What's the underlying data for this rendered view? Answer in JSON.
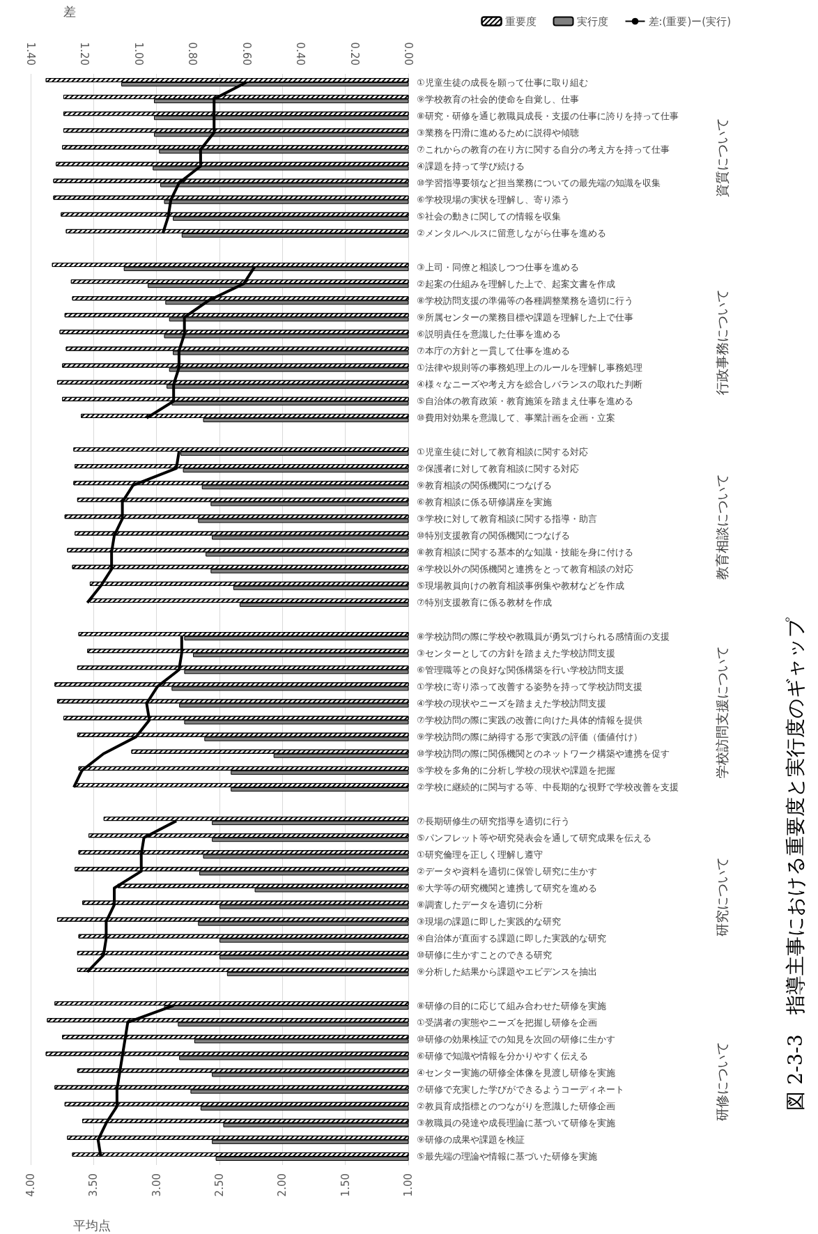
{
  "chart_data": {
    "type": "bar",
    "orientation": "horizontal",
    "title": "図 2-3-3　指導主事における重要度と実行度のギャップ",
    "xlabel": "平均点",
    "x2label": "差",
    "categories": [
      "①児童生徒の成長を願って仕事に取り組む",
      "⑨学校教育の社会的使命を自覚し、仕事",
      "⑧研究・研修を通じ教職員成長・支援の仕事に誇りを持って仕事",
      "③業務を円滑に進めるために説得や傾聴",
      "⑦これからの教育の在り方に関する自分の考え方を持って仕事",
      "④課題を持って学び続ける",
      "⑩学習指導要領など担当業務についての最先端の知識を収集",
      "⑥学校現場の実状を理解し、寄り添う",
      "⑤社会の動きに関しての情報を収集",
      "②メンタルヘルスに留意しながら仕事を進める",
      null,
      "③上司・同僚と相談しつつ仕事を進める",
      "②起案の仕組みを理解した上で、起案文書を作成",
      "⑧学校訪問支援の準備等の各種調整業務を適切に行う",
      "⑨所属センターの業務目標や課題を理解した上で仕事",
      "⑥説明責任を意識した仕事を進める",
      "⑦本庁の方針と一貫して仕事を進める",
      "①法律や規則等の事務処理上のルールを理解し事務処理",
      "④様々なニーズや考え方を総合しバランスの取れた判断",
      "⑤自治体の教育政策・教育施策を踏まえ仕事を進める",
      "⑩費用対効果を意識して、事業計画を企画・立案",
      null,
      "①児童生徒に対して教育相談に関する対応",
      "②保護者に対して教育相談に関する対応",
      "⑨教育相談の関係機関につなげる",
      "⑥教育相談に係る研修講座を実施",
      "③学校に対して教育相談に関する指導・助言",
      "⑩特別支援教育の関係機関につなげる",
      "⑧教育相談に関する基本的な知識・技能を身に付ける",
      "④学校以外の関係機関と連携をとって教育相談の対応",
      "⑤現場教員向けの教育相談事例集や教材などを作成",
      "⑦特別支援教育に係る教材を作成",
      null,
      "⑧学校訪問の際に学校や教職員が勇気づけられる感情面の支援",
      "③センターとしての方針を踏まえた学校訪問支援",
      "⑥管理職等との良好な関係構築を行い学校訪問支援",
      "①学校に寄り添って改善する姿勢を持って学校訪問支援",
      "④学校の現状やニーズを踏まえた学校訪問支援",
      "⑦学校訪問の際に実践の改善に向けた具体的情報を提供",
      "⑨学校訪問の際に納得する形で実践の評価（価値付け）",
      "⑩学校訪問の際に関係機関とのネットワーク構築や連携を促す",
      "⑤学校を多角的に分析し学校の現状や課題を把握",
      "②学校に継続的に関与する等、中長期的な視野で学校改善を支援",
      null,
      "⑦長期研修生の研究指導を適切に行う",
      "⑤パンフレット等や研究発表会を通して研究成果を伝える",
      "①研究倫理を正しく理解し遵守",
      "②データや資料を適切に保管し研究に生かす",
      "⑥大学等の研究機関と連携して研究を進める",
      "⑧調査したデータを適切に分析",
      "③現場の課題に即した実践的な研究",
      "④自治体が直面する課題に即した実践的な研究",
      "⑩研修に生かすことのできる研究",
      "⑨分析した結果から課題やエビデンスを抽出",
      null,
      "⑧研修の目的に応じて組み合わせた研修を実施",
      "①受講者の実態やニーズを把握し研修を企画",
      "⑩研修の効果検証での知見を次回の研修に生かす",
      "⑥研修で知識や情報を分かりやすく伝える",
      "④センター実施の研修全体像を見渡し研修を実施",
      "⑦研修で充実した学びができるようコーディネート",
      "②教員育成指標とのつながりを意識した研修企画",
      "③教職員の発達や成長理論に基づいて研修を実施",
      "⑨研修の成果や課題を検証",
      "⑤最先端の理論や情報に基づいた研修を実施"
    ],
    "series": [
      {
        "name": "重要度",
        "color": "#ffffff",
        "values": [
          3.88,
          3.74,
          3.74,
          3.74,
          3.75,
          3.8,
          3.82,
          3.82,
          3.76,
          3.72,
          null,
          3.83,
          3.68,
          3.67,
          3.73,
          3.77,
          3.72,
          3.75,
          3.79,
          3.75,
          3.6,
          null,
          3.66,
          3.65,
          3.66,
          3.63,
          3.73,
          3.65,
          3.71,
          3.67,
          3.53,
          3.53,
          null,
          3.62,
          3.55,
          3.63,
          3.81,
          3.79,
          3.74,
          3.63,
          3.2,
          3.62,
          3.65,
          null,
          3.42,
          3.54,
          3.62,
          3.65,
          3.31,
          3.59,
          3.79,
          3.62,
          3.63,
          3.63,
          null,
          3.81,
          3.87,
          3.75,
          3.88,
          3.63,
          3.81,
          3.73,
          3.59,
          3.71,
          3.67
        ]
      },
      {
        "name": "実行度",
        "color": "#808080",
        "values": [
          3.28,
          3.02,
          3.02,
          3.02,
          2.98,
          3.03,
          2.97,
          2.94,
          2.87,
          2.8,
          null,
          3.26,
          3.07,
          2.93,
          2.9,
          2.94,
          2.87,
          2.9,
          2.92,
          2.88,
          2.63,
          null,
          2.81,
          2.79,
          2.64,
          2.57,
          2.67,
          2.56,
          2.61,
          2.57,
          2.39,
          2.34,
          null,
          2.78,
          2.71,
          2.78,
          2.88,
          2.82,
          2.78,
          2.62,
          2.07,
          2.41,
          2.41,
          null,
          2.56,
          2.56,
          2.63,
          2.66,
          2.22,
          2.5,
          2.67,
          2.5,
          2.5,
          2.44,
          null,
          2.94,
          2.83,
          2.7,
          2.82,
          2.56,
          2.73,
          2.65,
          2.47,
          2.56,
          2.53
        ]
      },
      {
        "name": "差:(重要)ー(実行)",
        "type": "line",
        "axis": "x2",
        "color": "#000000",
        "values": [
          0.6,
          0.72,
          0.72,
          0.72,
          0.77,
          0.77,
          0.85,
          0.88,
          0.89,
          0.91,
          null,
          0.57,
          0.61,
          0.74,
          0.83,
          0.83,
          0.85,
          0.85,
          0.87,
          0.87,
          0.97,
          null,
          0.85,
          0.86,
          1.02,
          1.06,
          1.06,
          1.09,
          1.1,
          1.1,
          1.14,
          1.19,
          null,
          0.84,
          0.84,
          0.85,
          0.93,
          0.97,
          0.96,
          1.01,
          1.13,
          1.21,
          1.24,
          null,
          0.86,
          0.98,
          0.99,
          0.99,
          1.09,
          1.09,
          1.12,
          1.12,
          1.13,
          1.19,
          null,
          0.87,
          1.04,
          1.05,
          1.06,
          1.07,
          1.08,
          1.08,
          1.12,
          1.15,
          1.14
        ]
      }
    ],
    "xlim": [
      4,
      1
    ],
    "xticks": [
      {
        "value": 4,
        "label": "4.00"
      },
      {
        "value": 3.5,
        "label": "3.50"
      },
      {
        "value": 3,
        "label": "3.00"
      },
      {
        "value": 2.5,
        "label": "2.50"
      },
      {
        "value": 2,
        "label": "2.00"
      },
      {
        "value": 1.5,
        "label": "1.50"
      },
      {
        "value": 1,
        "label": "1.00"
      }
    ],
    "x2lim": [
      1.4,
      0
    ],
    "x2ticks": [
      {
        "value": 1.4,
        "label": "1.40"
      },
      {
        "value": 1.2,
        "label": "1.20"
      },
      {
        "value": 1,
        "label": "1.00"
      },
      {
        "value": 0.8,
        "label": "0.80"
      },
      {
        "value": 0.6,
        "label": "0.60"
      },
      {
        "value": 0.4,
        "label": "0.40"
      },
      {
        "value": 0.2,
        "label": "0.20"
      },
      {
        "value": 0,
        "label": "0.00"
      }
    ],
    "grid": "x",
    "legend": "top right",
    "marker": "none",
    "annotations": [
      "資質について",
      "行政事務について",
      "教育相談について",
      "学校訪問支援について",
      "研究について",
      "研修について"
    ]
  }
}
